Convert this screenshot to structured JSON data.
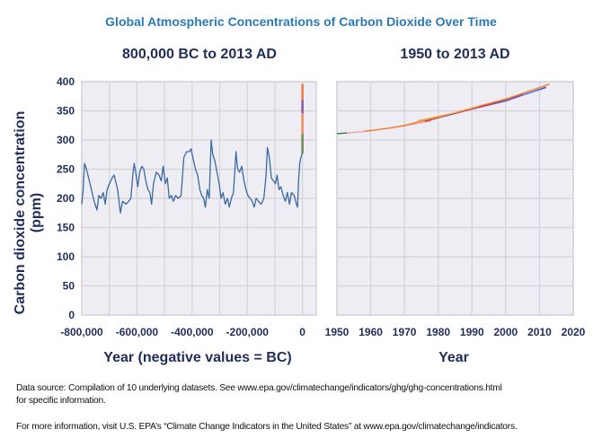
{
  "title": "Global Atmospheric Concentrations of Carbon Dioxide Over Time",
  "footer": {
    "source_line1": "Data source: Compilation of 10 underlying datasets. See www.epa.gov/climatechange/indicators/ghg/ghg-concentrations.html",
    "source_line2": "for specific information.",
    "more_info": "For more information, visit U.S. EPA’s “Climate Change Indicators in the United States” at www.epa.gov/climatechange/indicators."
  },
  "colors": {
    "title": "#2a7ab8",
    "text": "#1f2d5a",
    "plot_bg": "#efedf4",
    "grid": "#d4d2d8",
    "ice_core": "#3a6aa0"
  },
  "chart_data": [
    {
      "type": "line",
      "title": "800,000 BC to 2013 AD",
      "xlabel": "Year (negative values = BC)",
      "ylabel": "Carbon dioxide concentration (ppm)",
      "xlim": [
        -800000,
        50000
      ],
      "ylim": [
        0,
        400
      ],
      "xticks": [
        -800000,
        -600000,
        -400000,
        -200000,
        0
      ],
      "xtick_labels": [
        "-800,000",
        "-600,000",
        "-400,000",
        "-200,000",
        "0"
      ],
      "yticks": [
        0,
        50,
        100,
        150,
        200,
        250,
        300,
        350,
        400
      ],
      "grid": true,
      "series": [
        {
          "color": "#3a6aa0",
          "x": [
            -800000,
            -795000,
            -790000,
            -783000,
            -775000,
            -765000,
            -755000,
            -745000,
            -738000,
            -730000,
            -722000,
            -715000,
            -708000,
            -700000,
            -690000,
            -683000,
            -675000,
            -670000,
            -660000,
            -652000,
            -640000,
            -630000,
            -622000,
            -615000,
            -610000,
            -603000,
            -597000,
            -590000,
            -582000,
            -575000,
            -568000,
            -560000,
            -553000,
            -547000,
            -540000,
            -530000,
            -520000,
            -512000,
            -505000,
            -497000,
            -490000,
            -483000,
            -475000,
            -468000,
            -460000,
            -450000,
            -440000,
            -430000,
            -420000,
            -410000,
            -404000,
            -395000,
            -388000,
            -380000,
            -372000,
            -365000,
            -358000,
            -352000,
            -345000,
            -338000,
            -331000,
            -325000,
            -318000,
            -310000,
            -302000,
            -295000,
            -288000,
            -280000,
            -272000,
            -265000,
            -258000,
            -250000,
            -241000,
            -235000,
            -228000,
            -220000,
            -212000,
            -205000,
            -198000,
            -190000,
            -182000,
            -175000,
            -168000,
            -160000,
            -150000,
            -140000,
            -132000,
            -127000,
            -120000,
            -113000,
            -105000,
            -98000,
            -92000,
            -85000,
            -78000,
            -70000,
            -62000,
            -55000,
            -47000,
            -40000,
            -30000,
            -22000,
            -18000,
            -14000,
            -10000,
            -6000,
            -2000,
            0
          ],
          "y": [
            190,
            215,
            260,
            250,
            235,
            215,
            195,
            180,
            205,
            200,
            210,
            190,
            215,
            225,
            235,
            240,
            225,
            215,
            175,
            195,
            190,
            195,
            200,
            240,
            260,
            240,
            220,
            245,
            255,
            250,
            230,
            215,
            210,
            190,
            225,
            245,
            240,
            230,
            255,
            225,
            235,
            200,
            205,
            195,
            205,
            200,
            205,
            270,
            280,
            280,
            285,
            265,
            250,
            240,
            215,
            205,
            200,
            185,
            215,
            200,
            300,
            275,
            265,
            245,
            225,
            200,
            210,
            190,
            200,
            185,
            200,
            210,
            280,
            250,
            245,
            255,
            230,
            215,
            205,
            200,
            195,
            185,
            200,
            195,
            190,
            200,
            240,
            287,
            270,
            235,
            230,
            225,
            240,
            215,
            220,
            205,
            195,
            210,
            190,
            210,
            205,
            190,
            185,
            230,
            260,
            270,
            275,
            280
          ]
        },
        {
          "color": "#6f8a5a",
          "x": [
            1750,
            1850,
            1950
          ],
          "y": [
            277,
            285,
            311
          ]
        },
        {
          "color": "#f08a5a",
          "x": [
            1950,
            1970,
            1985
          ],
          "y": [
            311,
            325,
            346
          ]
        },
        {
          "color": "#8a5aa0",
          "x": [
            1985,
            2000
          ],
          "y": [
            346,
            369
          ]
        },
        {
          "color": "#f07a40",
          "x": [
            2000,
            2013
          ],
          "y": [
            369,
            396
          ]
        }
      ]
    },
    {
      "type": "line",
      "title": "1950 to 2013 AD",
      "xlabel": "Year",
      "xlim": [
        1950,
        2020
      ],
      "ylim": [
        0,
        400
      ],
      "xticks": [
        1950,
        1960,
        1970,
        1980,
        1990,
        2000,
        2010,
        2020
      ],
      "xtick_labels": [
        "1950",
        "1960",
        "1970",
        "1980",
        "1990",
        "2000",
        "2010",
        "2020"
      ],
      "yticks": [
        0,
        50,
        100,
        150,
        200,
        250,
        300,
        350,
        400
      ],
      "grid": true,
      "series": [
        {
          "color": "#2a7a2a",
          "x": [
            1950,
            1953
          ],
          "y": [
            311,
            312
          ]
        },
        {
          "color": "#f4a0a0",
          "x": [
            1953,
            1960,
            1970,
            1978
          ],
          "y": [
            312,
            316,
            324,
            333
          ]
        },
        {
          "color": "#8a3a8a",
          "x": [
            1976,
            1980,
            1990,
            2000,
            2012
          ],
          "y": [
            332,
            338,
            353,
            367,
            391
          ]
        },
        {
          "color": "#4a6ae0",
          "x": [
            1990,
            2000,
            2012
          ],
          "y": [
            353,
            368,
            390
          ]
        },
        {
          "color": "#a0c040",
          "x": [
            1992,
            1995,
            1999,
            2002
          ],
          "y": [
            357,
            362,
            369,
            373
          ]
        },
        {
          "color": "#e03050",
          "x": [
            1985,
            1995,
            2005
          ],
          "y": [
            346,
            361,
            379
          ]
        },
        {
          "color": "#f07a20",
          "x": [
            1958,
            1965,
            1970,
            1974,
            1980,
            1990,
            2000,
            2005,
            2013
          ],
          "y": [
            315,
            320,
            325,
            331,
            339,
            355,
            370,
            380,
            396
          ]
        },
        {
          "color": "#f0b040",
          "x": [
            1974,
            1985,
            1992
          ],
          "y": [
            333,
            347,
            358
          ]
        }
      ]
    }
  ]
}
